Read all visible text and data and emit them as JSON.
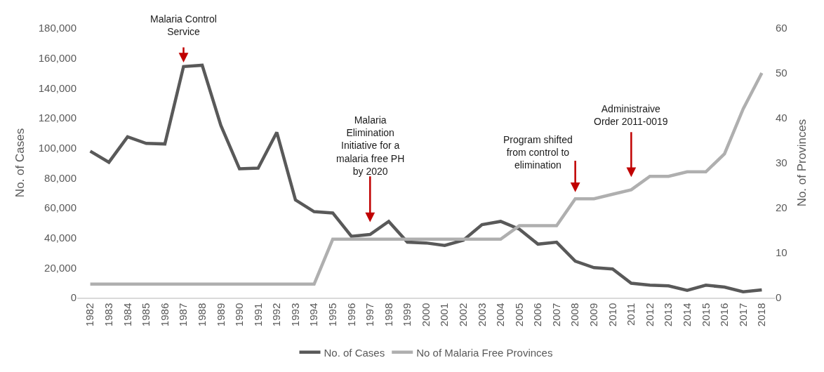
{
  "chart_data": {
    "type": "line",
    "ylabel": "No. of Cases",
    "y2label": "No. of Provinces",
    "categories": [
      "1982",
      "1983",
      "1984",
      "1985",
      "1986",
      "1987",
      "1988",
      "1989",
      "1990",
      "1991",
      "1992",
      "1993",
      "1994",
      "1995",
      "1996",
      "1997",
      "1998",
      "1999",
      "2000",
      "2001",
      "2002",
      "2003",
      "2004",
      "2005",
      "2006",
      "2007",
      "2008",
      "2009",
      "2010",
      "2011",
      "2012",
      "2013",
      "2014",
      "2015",
      "2016",
      "2017",
      "2018"
    ],
    "series": [
      {
        "name": "No. of Cases",
        "color": "#595959",
        "values": [
          97800,
          90400,
          107400,
          103000,
          102600,
          154300,
          155200,
          115000,
          86000,
          86500,
          110400,
          65200,
          57400,
          56500,
          40900,
          42200,
          50900,
          37000,
          36500,
          34800,
          38300,
          48700,
          50900,
          45700,
          35700,
          37000,
          24300,
          20000,
          19100,
          9600,
          8300,
          7800,
          4800,
          8300,
          7000,
          3900,
          5200
        ]
      },
      {
        "name": "No of Malaria Free Provinces",
        "color": "#afafaf",
        "axis": "y2",
        "values": [
          3,
          3,
          3,
          3,
          3,
          3,
          3,
          3,
          3,
          3,
          3,
          3,
          3,
          13,
          13,
          13,
          13,
          13,
          13,
          13,
          13,
          13,
          13,
          16,
          16,
          16,
          22,
          22,
          23,
          24,
          27,
          27,
          28,
          28,
          32,
          42,
          50
        ]
      }
    ],
    "ylim": [
      0,
      180000
    ],
    "yticks": [
      {
        "value": 0,
        "label": "0"
      },
      {
        "value": 20000,
        "label": "20,000"
      },
      {
        "value": 40000,
        "label": "40,000"
      },
      {
        "value": 60000,
        "label": "60,000"
      },
      {
        "value": 80000,
        "label": "80,000"
      },
      {
        "value": 100000,
        "label": "100,000"
      },
      {
        "value": 120000,
        "label": "120,000"
      },
      {
        "value": 140000,
        "label": "140,000"
      },
      {
        "value": 160000,
        "label": "160,000"
      },
      {
        "value": 180000,
        "label": "180,000"
      }
    ],
    "y2lim": [
      0,
      60
    ],
    "y2ticks": [
      0,
      10,
      20,
      30,
      40,
      50,
      60
    ],
    "legend": "bottom",
    "annotations": [
      {
        "text": "Malaria Control\nService",
        "x": "1987",
        "y": 157000
      },
      "Malaria\nElimination\nInitiative for a\nmalaria free PH\nby 2020",
      "Program shifted\nfrom control to\nelimination",
      "Administraive\nOrder 2011-0019"
    ]
  }
}
